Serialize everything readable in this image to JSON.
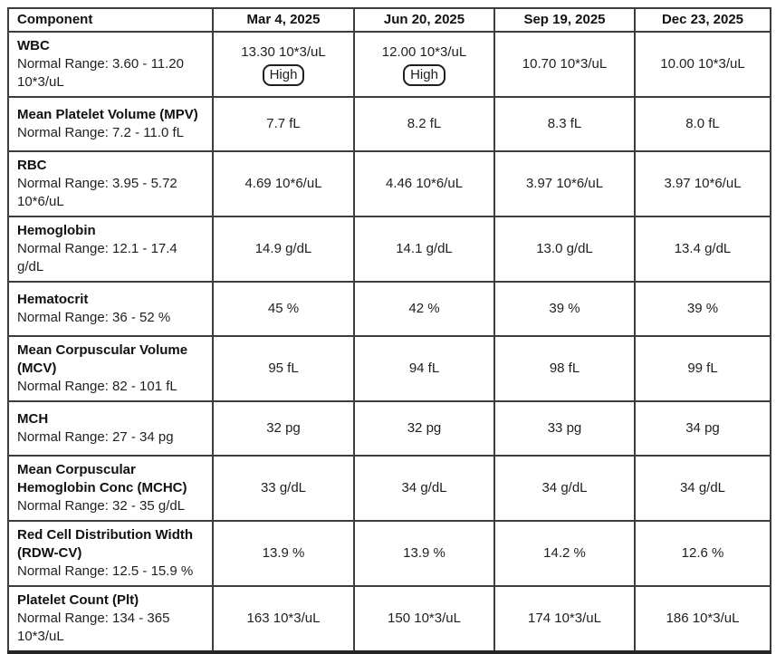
{
  "table": {
    "columns": [
      "Component",
      "Mar 4, 2025",
      "Jun 20, 2025",
      "Sep 19, 2025",
      "Dec 23, 2025"
    ],
    "colors": {
      "border_inner": "#3d3d3d",
      "border_outer": "#262626",
      "text": "#1f1f1f",
      "badge_outline": "#1f1f1f"
    },
    "rows": [
      {
        "component": "WBC",
        "normal_range": "Normal Range: 3.60 - 11.20 10*3/uL",
        "values": [
          {
            "text": "13.30 10*3/uL",
            "flag": "High"
          },
          {
            "text": "12.00 10*3/uL",
            "flag": "High"
          },
          {
            "text": "10.70 10*3/uL",
            "flag": null
          },
          {
            "text": "10.00 10*3/uL",
            "flag": null
          }
        ]
      },
      {
        "component": "Mean Platelet Volume (MPV)",
        "normal_range": "Normal Range: 7.2 - 11.0 fL",
        "values": [
          {
            "text": "7.7 fL",
            "flag": null
          },
          {
            "text": "8.2 fL",
            "flag": null
          },
          {
            "text": "8.3 fL",
            "flag": null
          },
          {
            "text": "8.0 fL",
            "flag": null
          }
        ]
      },
      {
        "component": "RBC",
        "normal_range": "Normal Range: 3.95 - 5.72 10*6/uL",
        "values": [
          {
            "text": "4.69 10*6/uL",
            "flag": null
          },
          {
            "text": "4.46 10*6/uL",
            "flag": null
          },
          {
            "text": "3.97 10*6/uL",
            "flag": null
          },
          {
            "text": "3.97 10*6/uL",
            "flag": null
          }
        ]
      },
      {
        "component": "Hemoglobin",
        "normal_range": "Normal Range: 12.1 - 17.4 g/dL",
        "values": [
          {
            "text": "14.9 g/dL",
            "flag": null
          },
          {
            "text": "14.1 g/dL",
            "flag": null
          },
          {
            "text": "13.0 g/dL",
            "flag": null
          },
          {
            "text": "13.4 g/dL",
            "flag": null
          }
        ]
      },
      {
        "component": "Hematocrit",
        "normal_range": "Normal Range: 36 - 52 %",
        "values": [
          {
            "text": "45 %",
            "flag": null
          },
          {
            "text": "42 %",
            "flag": null
          },
          {
            "text": "39 %",
            "flag": null
          },
          {
            "text": "39 %",
            "flag": null
          }
        ]
      },
      {
        "component": "Mean Corpuscular Volume (MCV)",
        "normal_range": "Normal Range: 82 - 101 fL",
        "values": [
          {
            "text": "95 fL",
            "flag": null
          },
          {
            "text": "94 fL",
            "flag": null
          },
          {
            "text": "98 fL",
            "flag": null
          },
          {
            "text": "99 fL",
            "flag": null
          }
        ]
      },
      {
        "component": "MCH",
        "normal_range": "Normal Range: 27 - 34 pg",
        "values": [
          {
            "text": "32 pg",
            "flag": null
          },
          {
            "text": "32 pg",
            "flag": null
          },
          {
            "text": "33 pg",
            "flag": null
          },
          {
            "text": "34 pg",
            "flag": null
          }
        ]
      },
      {
        "component": "Mean Corpuscular Hemoglobin Conc (MCHC)",
        "normal_range": "Normal Range: 32 - 35 g/dL",
        "values": [
          {
            "text": "33 g/dL",
            "flag": null
          },
          {
            "text": "34 g/dL",
            "flag": null
          },
          {
            "text": "34 g/dL",
            "flag": null
          },
          {
            "text": "34 g/dL",
            "flag": null
          }
        ]
      },
      {
        "component": "Red Cell Distribution Width (RDW-CV)",
        "normal_range": "Normal Range: 12.5 - 15.9 %",
        "values": [
          {
            "text": "13.9 %",
            "flag": null
          },
          {
            "text": "13.9 %",
            "flag": null
          },
          {
            "text": "14.2 %",
            "flag": null
          },
          {
            "text": "12.6 %",
            "flag": null
          }
        ]
      },
      {
        "component": "Platelet Count (Plt)",
        "normal_range": "Normal Range: 134 - 365 10*3/uL",
        "values": [
          {
            "text": "163 10*3/uL",
            "flag": null
          },
          {
            "text": "150 10*3/uL",
            "flag": null
          },
          {
            "text": "174 10*3/uL",
            "flag": null
          },
          {
            "text": "186 10*3/uL",
            "flag": null
          }
        ]
      }
    ]
  }
}
